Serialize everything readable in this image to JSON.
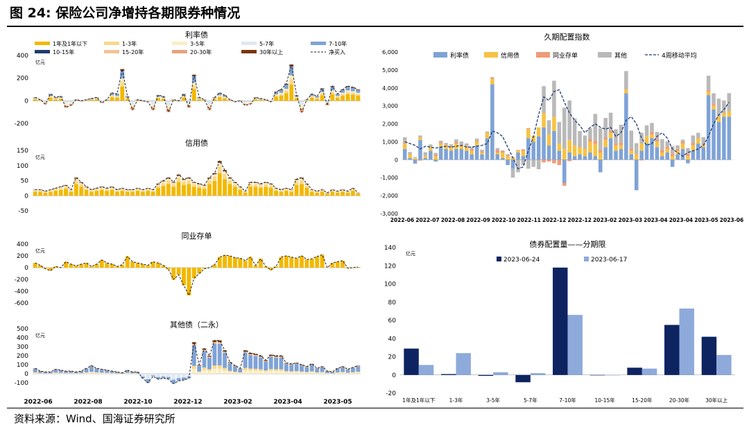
{
  "figure": {
    "title": "图 24:  保险公司净增持各期限券种情况",
    "source": "资料来源：Wind、国海证券研究所"
  },
  "colors": {
    "y1": "#f2b800",
    "y13": "#f8d98a",
    "y35": "#fbeec6",
    "y57": "#dfe7f2",
    "y710": "#7fa3d6",
    "y1015": "#1f3b73",
    "y1520": "#f2c29b",
    "y2030": "#e8a27f",
    "y30": "#7a3608",
    "rate": "#7fa3d6",
    "credit": "#f6c343",
    "ncd": "#ee9c77",
    "other": "#b9b9b9",
    "ma": "#1f3b73",
    "dark": "#0e2461",
    "light": "#8eaadb"
  },
  "chart_data": [
    {
      "id": "rate",
      "type": "bar",
      "title": "利率债",
      "unit": "亿元",
      "ylim": [
        -200,
        400
      ],
      "yticks": [
        "-200",
        "0",
        "200",
        "400"
      ],
      "series_names": [
        "1年及1年以下",
        "1-3年",
        "3-5年",
        "5-7年",
        "7-10年",
        "10-15年",
        "15-20年",
        "20-30年",
        "30年以上",
        "净买入"
      ],
      "values": [
        30,
        10,
        -30,
        60,
        30,
        40,
        -60,
        -40,
        10,
        0,
        10,
        20,
        30,
        -20,
        10,
        70,
        60,
        280,
        40,
        -80,
        10,
        0,
        -10,
        -80,
        50,
        40,
        -100,
        10,
        0,
        60,
        -60,
        230,
        30,
        10,
        -80,
        30,
        70,
        50,
        10,
        -10,
        0,
        -40,
        -30,
        30,
        20,
        10,
        -10,
        80,
        100,
        150,
        320,
        50,
        -100,
        10,
        60,
        40,
        110,
        -40,
        130,
        60,
        100,
        130,
        120,
        100
      ]
    },
    {
      "id": "credit",
      "type": "bar",
      "title": "信用债",
      "unit": "亿元",
      "ylim": [
        -50,
        150
      ],
      "yticks": [
        "-50",
        "0",
        "50",
        "100",
        "150"
      ],
      "values": [
        20,
        20,
        15,
        20,
        25,
        30,
        35,
        20,
        60,
        45,
        30,
        20,
        25,
        30,
        25,
        30,
        20,
        25,
        20,
        20,
        25,
        20,
        25,
        20,
        40,
        50,
        60,
        45,
        70,
        55,
        60,
        45,
        40,
        35,
        60,
        75,
        115,
        85,
        60,
        45,
        30,
        15,
        45,
        45,
        40,
        45,
        40,
        25,
        20,
        25,
        20,
        55,
        60,
        40,
        20,
        15,
        20,
        10,
        20,
        15,
        20,
        15,
        25,
        10
      ]
    },
    {
      "id": "ncd",
      "type": "bar",
      "title": "同业存单",
      "unit": "亿元",
      "ylim": [
        -600,
        400
      ],
      "yticks": [
        "-600",
        "-400",
        "-200",
        "0",
        "200",
        "400"
      ],
      "values": [
        80,
        40,
        -20,
        -50,
        20,
        0,
        100,
        60,
        30,
        60,
        80,
        20,
        60,
        130,
        80,
        60,
        20,
        50,
        190,
        100,
        80,
        60,
        40,
        100,
        80,
        40,
        -30,
        -200,
        -120,
        -300,
        -470,
        -180,
        -100,
        -20,
        0,
        50,
        180,
        210,
        200,
        170,
        160,
        120,
        180,
        40,
        150,
        20,
        -40,
        20,
        180,
        200,
        180,
        160,
        200,
        140,
        150,
        190,
        220,
        0,
        80,
        100,
        120,
        -10,
        0,
        10
      ]
    },
    {
      "id": "other",
      "type": "bar",
      "title": "其他债（二永）",
      "unit": "亿元",
      "ylim": [
        -100,
        500
      ],
      "yticks": [
        "-100",
        "0",
        "100",
        "200",
        "300",
        "400",
        "500"
      ],
      "values": [
        60,
        30,
        20,
        20,
        50,
        40,
        30,
        30,
        20,
        30,
        60,
        90,
        60,
        50,
        40,
        30,
        20,
        10,
        40,
        20,
        20,
        -50,
        -100,
        -30,
        -60,
        -50,
        -60,
        -110,
        -80,
        -70,
        -50,
        350,
        100,
        280,
        200,
        370,
        370,
        260,
        130,
        90,
        60,
        260,
        230,
        220,
        200,
        150,
        210,
        200,
        200,
        120,
        110,
        120,
        100,
        80,
        110,
        60,
        80,
        30,
        20,
        60,
        80,
        50,
        70,
        90
      ]
    },
    {
      "id": "duration",
      "type": "bar",
      "title": "久期配置指数",
      "ylim": [
        -3000,
        6000
      ],
      "yticks": [
        "-3,000",
        "-2,000",
        "-1,000",
        "0",
        "1,000",
        "2,000",
        "3,000",
        "4,000",
        "5,000",
        "6,000"
      ],
      "xticks": [
        "2022-06",
        "2022-07",
        "2022-08",
        "2022-09",
        "2022-10",
        "2022-11",
        "2022-12",
        "2022-12",
        "2023-02",
        "2023-03",
        "2023-04",
        "2023-04",
        "2023-05",
        "2023-06"
      ],
      "legend": [
        "利率债",
        "信用债",
        "同业存单",
        "其他",
        "4周移动平均"
      ],
      "series": [
        {
          "name": "利率债",
          "values": [
            600,
            100,
            -200,
            1100,
            100,
            500,
            -100,
            700,
            600,
            500,
            600,
            600,
            500,
            300,
            800,
            300,
            1200,
            4200,
            300,
            100,
            -300,
            -500,
            400,
            200,
            1200,
            1000,
            1300,
            1800,
            800,
            1600,
            500,
            -1300,
            400,
            200,
            300,
            200,
            400,
            200,
            -700,
            700,
            1200,
            500,
            600,
            3700,
            300,
            -1700,
            500,
            900,
            1200,
            700,
            200,
            400,
            -400,
            300,
            600,
            -200,
            500,
            900,
            700,
            3600,
            2800,
            2100,
            2400,
            2400
          ]
        },
        {
          "name": "信用债",
          "values": [
            300,
            200,
            100,
            150,
            100,
            200,
            200,
            200,
            200,
            200,
            300,
            200,
            200,
            200,
            200,
            100,
            300,
            300,
            100,
            300,
            200,
            100,
            100,
            300,
            500,
            300,
            500,
            800,
            600,
            800,
            400,
            600,
            700,
            600,
            400,
            400,
            600,
            700,
            400,
            400,
            300,
            300,
            200,
            200,
            200,
            300,
            400,
            400,
            200,
            300,
            200,
            200,
            200,
            200,
            300,
            200,
            300,
            300,
            100,
            200,
            200,
            300,
            200,
            300
          ]
        },
        {
          "name": "同业存单",
          "values": [
            50,
            30,
            -20,
            -50,
            20,
            0,
            80,
            60,
            30,
            60,
            80,
            20,
            60,
            100,
            80,
            60,
            20,
            50,
            150,
            80,
            60,
            50,
            40,
            80,
            60,
            40,
            -30,
            -150,
            -100,
            -200,
            -300,
            -150,
            -80,
            -20,
            0,
            50,
            150,
            150,
            150,
            130,
            120,
            100,
            150,
            40,
            120,
            20,
            -40,
            20,
            150,
            150,
            150,
            120,
            150,
            100,
            120,
            150,
            150,
            0,
            60,
            80,
            100,
            -10,
            0,
            10
          ]
        },
        {
          "name": "其他",
          "values": [
            300,
            100,
            50,
            100,
            200,
            150,
            100,
            100,
            100,
            100,
            150,
            200,
            150,
            100,
            100,
            100,
            50,
            50,
            100,
            50,
            50,
            -500,
            -700,
            -300,
            -500,
            -400,
            -500,
            1500,
            800,
            2000,
            1200,
            2300,
            2200,
            1500,
            900,
            700,
            600,
            1500,
            1200,
            1100,
            1000,
            800,
            1000,
            1000,
            1000,
            600,
            600,
            600,
            500,
            400,
            600,
            300,
            400,
            200,
            100,
            300,
            400,
            300,
            400,
            800,
            600,
            1000,
            700,
            1000
          ]
        }
      ],
      "ma": [
        1000,
        900,
        800,
        600,
        750,
        700,
        650,
        700,
        750,
        700,
        750,
        800,
        700,
        700,
        750,
        800,
        900,
        1600,
        1500,
        1300,
        700,
        100,
        -500,
        -400,
        500,
        1300,
        2500,
        3500,
        3300,
        3800,
        3900,
        3200,
        2600,
        2200,
        1900,
        1500,
        1800,
        2000,
        1800,
        1700,
        1800,
        1300,
        1500,
        2200,
        2400,
        2000,
        1200,
        800,
        900,
        1300,
        1500,
        1200,
        600,
        400,
        200,
        400,
        500,
        600,
        800,
        1300,
        2000,
        2500,
        2800,
        3200
      ]
    },
    {
      "id": "alloc",
      "type": "bar",
      "title": "债券配置量——分期限",
      "unit": "亿元",
      "ylim": [
        -20,
        140
      ],
      "yticks": [
        "-20",
        "0",
        "20",
        "40",
        "60",
        "80",
        "100",
        "120",
        "140"
      ],
      "categories": [
        "1年及1年以下",
        "1-3年",
        "3-5年",
        "5-7年",
        "7-10年",
        "10-15年",
        "15-20年",
        "20-30年",
        "30年以上"
      ],
      "series": [
        {
          "name": "2023-06-24",
          "values": [
            29,
            1,
            -1,
            -8,
            118,
            0,
            8,
            55,
            42
          ]
        },
        {
          "name": "2023-06-17",
          "values": [
            11,
            24,
            3,
            2,
            66,
            0,
            7,
            73,
            22
          ]
        }
      ]
    }
  ],
  "left_xticks": [
    "2022-06",
    "2022-08",
    "2022-10",
    "2022-12",
    "2023-02",
    "2023-04",
    "2023-05"
  ]
}
